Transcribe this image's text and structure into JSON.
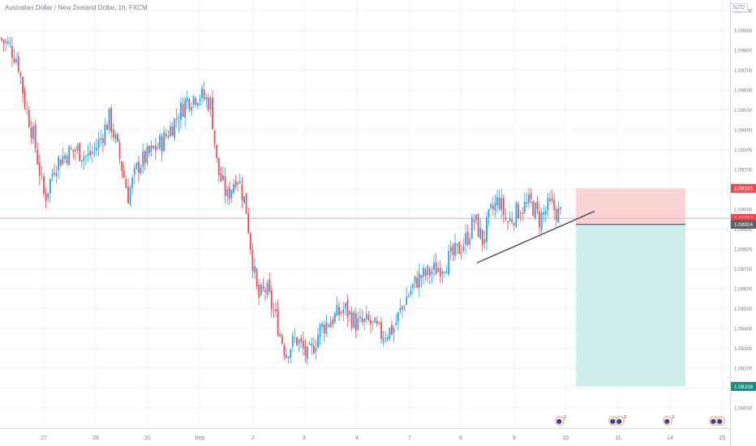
{
  "header": {
    "title": "Australian Dollar / New Zealand Dollar, 1h, FXCM",
    "currency_button": "NZD"
  },
  "colors": {
    "bull": "#26a0e8",
    "bear": "#ef4b55",
    "grid": "#f0f3fa",
    "axis_text": "#7a7f8c",
    "reference_line": "#f7a7a9",
    "stop_zone": "#fad3d3",
    "target_zone": "#cdeeea",
    "trendline": "#4a4e5a",
    "label_red": "#ef4b55",
    "label_grey": "#5d606b",
    "label_teal": "#138f86"
  },
  "chart_data": {
    "type": "candlestick",
    "symbol": "Australian Dollar / New Zealand Dollar",
    "interval": "1h",
    "xlabels": [
      "27",
      "28",
      "31",
      "Sep",
      "2",
      "3",
      "4",
      "7",
      "8",
      "9",
      "10",
      "11",
      "14",
      "15"
    ],
    "y_ticks": [
      "1.10000",
      "1.09900",
      "1.09800",
      "1.09700",
      "1.09600",
      "1.09500",
      "1.09400",
      "1.09300",
      "1.09200",
      "1.09100",
      "1.09000",
      "1.08900",
      "1.08800",
      "1.08700",
      "1.08600",
      "1.08500",
      "1.08400",
      "1.08300",
      "1.08200",
      "1.08100",
      "1.08000"
    ],
    "ylim": [
      1.0799,
      1.1003
    ],
    "close_path": [
      [
        0,
        1.0986
      ],
      [
        12,
        1.0982
      ],
      [
        22,
        1.0975
      ],
      [
        30,
        1.0955
      ],
      [
        42,
        1.0935
      ],
      [
        55,
        1.0905
      ],
      [
        68,
        1.0923
      ],
      [
        82,
        1.0928
      ],
      [
        95,
        1.093
      ],
      [
        108,
        1.0926
      ],
      [
        120,
        1.0932
      ],
      [
        135,
        1.0946
      ],
      [
        148,
        1.0925
      ],
      [
        158,
        1.0907
      ],
      [
        170,
        1.0922
      ],
      [
        185,
        1.0928
      ],
      [
        200,
        1.0934
      ],
      [
        215,
        1.0944
      ],
      [
        230,
        1.0955
      ],
      [
        245,
        1.0958
      ],
      [
        260,
        1.0953
      ],
      [
        268,
        1.092
      ],
      [
        280,
        1.0906
      ],
      [
        292,
        1.0918
      ],
      [
        303,
        1.0902
      ],
      [
        310,
        1.0878
      ],
      [
        318,
        1.0855
      ],
      [
        328,
        1.086
      ],
      [
        340,
        1.0845
      ],
      [
        352,
        1.0828
      ],
      [
        365,
        1.0835
      ],
      [
        380,
        1.0825
      ],
      [
        395,
        1.084
      ],
      [
        410,
        1.0845
      ],
      [
        425,
        1.085
      ],
      [
        440,
        1.0842
      ],
      [
        455,
        1.0843
      ],
      [
        470,
        1.0837
      ],
      [
        485,
        1.084
      ],
      [
        500,
        1.0855
      ],
      [
        515,
        1.0865
      ],
      [
        530,
        1.0868
      ],
      [
        545,
        1.0872
      ],
      [
        560,
        1.0877
      ],
      [
        575,
        1.0885
      ],
      [
        585,
        1.0895
      ],
      [
        595,
        1.0884
      ],
      [
        605,
        1.0898
      ],
      [
        615,
        1.0905
      ],
      [
        625,
        1.0893
      ],
      [
        640,
        1.09
      ],
      [
        655,
        1.0903
      ],
      [
        665,
        1.0895
      ],
      [
        678,
        1.0902
      ],
      [
        690,
        1.0897
      ]
    ],
    "reference_price": 1.08954,
    "trendline": {
      "x": [
        588,
        733
      ],
      "y": [
        1.0873,
        1.0899
      ]
    },
    "position": {
      "stop": 1.09105,
      "entry": 1.08924,
      "target": 1.08108,
      "x_range": [
        710,
        845
      ]
    },
    "price_labels": [
      {
        "text": "1.09105",
        "price": 1.09105,
        "style": "red"
      },
      {
        "text": "1.08954",
        "price": 1.08954,
        "style": "red"
      },
      {
        "text": "44:25",
        "price": 1.08935,
        "style": "red"
      },
      {
        "text": "1.08924",
        "price": 1.08924,
        "style": "grey"
      },
      {
        "text": "1.08108",
        "price": 1.08108,
        "style": "teal"
      }
    ],
    "events": [
      {
        "x": 690,
        "count": 1,
        "badge": "2"
      },
      {
        "x": 760,
        "count": 2,
        "badge": "2"
      },
      {
        "x": 823,
        "count": 1,
        "badge": "2"
      },
      {
        "x": 884,
        "count": 2,
        "badge": ""
      }
    ]
  }
}
